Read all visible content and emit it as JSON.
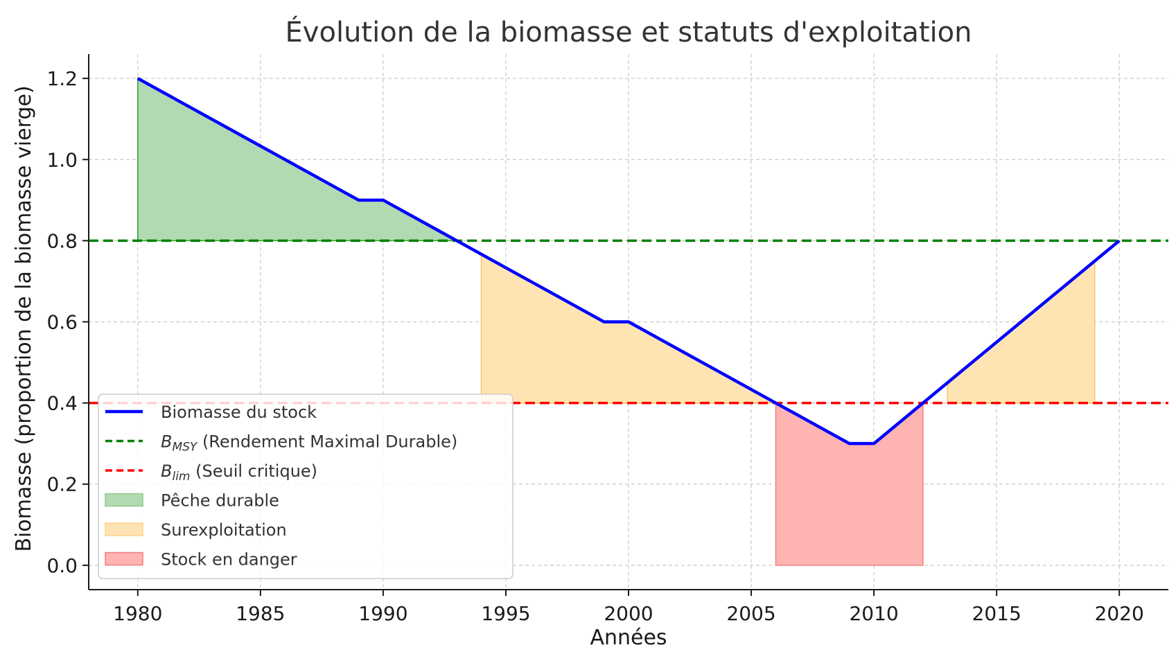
{
  "chart_data": {
    "type": "line",
    "title": "Évolution de la biomasse et statuts d'exploitation",
    "xlabel": "Années",
    "ylabel": "Biomasse (proportion de la biomasse vierge)",
    "xlim": [
      1978,
      2022
    ],
    "ylim": [
      -0.06,
      1.26
    ],
    "xticks": [
      1980,
      1985,
      1990,
      1995,
      2000,
      2005,
      2010,
      2015,
      2020
    ],
    "yticks": [
      0.0,
      0.2,
      0.4,
      0.6,
      0.8,
      1.0,
      1.2
    ],
    "grid": true,
    "legend_position": "lower-left",
    "series": [
      {
        "name": "Biomasse du stock",
        "color": "#0000ff",
        "x": [
          1980,
          1989,
          1990,
          1999,
          2000,
          2009,
          2010,
          2020
        ],
        "y": [
          1.2,
          0.9,
          0.9,
          0.6,
          0.6,
          0.3,
          0.3,
          0.8
        ]
      }
    ],
    "reference_lines": [
      {
        "key": "bmsy",
        "symbol": "B",
        "subscript": "MSY",
        "label": "(Rendement Maximal Durable)",
        "y": 0.8,
        "color": "#008000"
      },
      {
        "key": "blim",
        "symbol": "B",
        "subscript": "lim",
        "label": "(Seuil critique)",
        "y": 0.4,
        "color": "#ff0000"
      }
    ],
    "regions": [
      {
        "name": "Pêche durable",
        "color": "#2ca02c",
        "fill": "#b2dab2",
        "x_from": 1980,
        "x_to": 1993,
        "baseline": 0.8
      },
      {
        "name": "Surexploitation",
        "color": "#ffc266",
        "fill": "#ffe4b3",
        "x_from": 1994,
        "x_to": 2006,
        "baseline": 0.4
      },
      {
        "name": "Surexploitation",
        "color": "#ffc266",
        "fill": "#ffe4b3",
        "x_from": 2013,
        "x_to": 2019,
        "baseline": 0.4
      },
      {
        "name": "Stock en danger",
        "color": "#f08080",
        "fill": "#ffb3b3",
        "x_from": 2006,
        "x_to": 2012,
        "baseline": 0.0
      }
    ],
    "legend": [
      {
        "kind": "line",
        "text": "Biomasse du stock",
        "color": "#0000ff"
      },
      {
        "kind": "dash",
        "symbol": "B",
        "subscript": "MSY",
        "text": "(Rendement Maximal Durable)",
        "color": "#008000"
      },
      {
        "kind": "dash",
        "symbol": "B",
        "subscript": "lim",
        "text": "(Seuil critique)",
        "color": "#ff0000"
      },
      {
        "kind": "patch",
        "text": "Pêche durable",
        "fill": "#b2dab2",
        "color": "#8cc98c"
      },
      {
        "kind": "patch",
        "text": "Surexploitation",
        "fill": "#ffe4b3",
        "color": "#ffd28a"
      },
      {
        "kind": "patch",
        "text": "Stock en danger",
        "fill": "#ffb3b3",
        "color": "#f08080"
      }
    ]
  }
}
